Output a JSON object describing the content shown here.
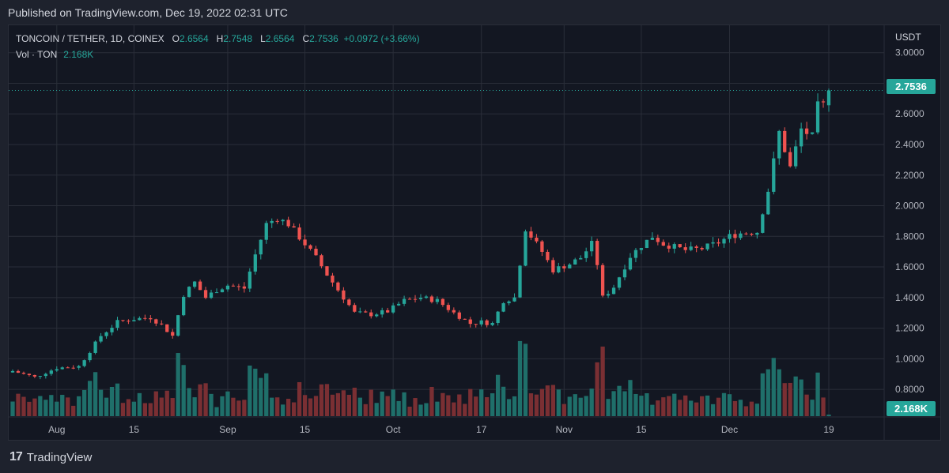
{
  "header": {
    "published": "Published on TradingView.com, Dec 19, 2022 02:31 UTC"
  },
  "legend": {
    "symbol": "TONCOIN / TETHER, 1D, COINEX",
    "o_label": "O",
    "o_value": "2.6564",
    "h_label": "H",
    "h_value": "2.7548",
    "l_label": "L",
    "l_value": "2.6564",
    "c_label": "C",
    "c_value": "2.7536",
    "change": "+0.0972 (+3.66%)",
    "vol_label": "Vol · TON",
    "vol_value": "2.168K"
  },
  "axis": {
    "unit": "USDT",
    "y_ticks": [
      "3.0000",
      "2.8000",
      "2.6000",
      "2.4000",
      "2.2000",
      "2.0000",
      "1.8000",
      "1.6000",
      "1.4000",
      "1.2000",
      "1.0000",
      "0.8000"
    ],
    "x_ticks": [
      "Aug",
      "15",
      "Sep",
      "15",
      "Oct",
      "17",
      "Nov",
      "15",
      "Dec",
      "19"
    ]
  },
  "price_tag": "2.7536",
  "volume_tag": "2.168K",
  "footer": {
    "brand": "TradingView",
    "logo": "17"
  },
  "colors": {
    "up": "#26a69a",
    "down": "#ef5350",
    "up_vol": "#1f6f6a",
    "down_vol": "#7a2f33",
    "grid": "#2a2e39",
    "bg": "#131722"
  },
  "chart_data": {
    "type": "candlestick",
    "title": "TONCOIN / TETHER, 1D, COINEX",
    "ylabel": "USDT",
    "ylim": [
      0.78,
      3.05
    ],
    "x_range": [
      "2022-07-24",
      "2022-12-19"
    ],
    "x_ticks": [
      {
        "label": "Aug",
        "date": "2022-08-01"
      },
      {
        "label": "15",
        "date": "2022-08-15"
      },
      {
        "label": "Sep",
        "date": "2022-09-01"
      },
      {
        "label": "15",
        "date": "2022-09-15"
      },
      {
        "label": "Oct",
        "date": "2022-10-01"
      },
      {
        "label": "17",
        "date": "2022-10-17"
      },
      {
        "label": "Nov",
        "date": "2022-11-01"
      },
      {
        "label": "15",
        "date": "2022-11-15"
      },
      {
        "label": "Dec",
        "date": "2022-12-01"
      },
      {
        "label": "19",
        "date": "2022-12-19"
      }
    ],
    "close_anchors": [
      [
        "2022-07-24",
        0.92
      ],
      [
        "2022-07-28",
        0.88
      ],
      [
        "2022-08-01",
        0.94
      ],
      [
        "2022-08-05",
        0.95
      ],
      [
        "2022-08-09",
        1.15
      ],
      [
        "2022-08-12",
        1.24
      ],
      [
        "2022-08-15",
        1.26
      ],
      [
        "2022-08-18",
        1.27
      ],
      [
        "2022-08-20",
        1.22
      ],
      [
        "2022-08-22",
        1.15
      ],
      [
        "2022-08-24",
        1.42
      ],
      [
        "2022-08-26",
        1.5
      ],
      [
        "2022-08-28",
        1.4
      ],
      [
        "2022-08-30",
        1.45
      ],
      [
        "2022-09-01",
        1.48
      ],
      [
        "2022-09-04",
        1.46
      ],
      [
        "2022-09-06",
        1.68
      ],
      [
        "2022-09-08",
        1.88
      ],
      [
        "2022-09-10",
        1.92
      ],
      [
        "2022-09-12",
        1.88
      ],
      [
        "2022-09-15",
        1.75
      ],
      [
        "2022-09-17",
        1.66
      ],
      [
        "2022-09-19",
        1.55
      ],
      [
        "2022-09-21",
        1.45
      ],
      [
        "2022-09-24",
        1.3
      ],
      [
        "2022-09-27",
        1.29
      ],
      [
        "2022-09-30",
        1.31
      ],
      [
        "2022-10-03",
        1.38
      ],
      [
        "2022-10-06",
        1.4
      ],
      [
        "2022-10-09",
        1.38
      ],
      [
        "2022-10-12",
        1.3
      ],
      [
        "2022-10-15",
        1.23
      ],
      [
        "2022-10-17",
        1.24
      ],
      [
        "2022-10-19",
        1.23
      ],
      [
        "2022-10-21",
        1.38
      ],
      [
        "2022-10-23",
        1.4
      ],
      [
        "2022-10-25",
        1.85
      ],
      [
        "2022-10-28",
        1.7
      ],
      [
        "2022-10-30",
        1.58
      ],
      [
        "2022-11-02",
        1.62
      ],
      [
        "2022-11-04",
        1.66
      ],
      [
        "2022-11-06",
        1.75
      ],
      [
        "2022-11-07",
        1.62
      ],
      [
        "2022-11-08",
        1.4
      ],
      [
        "2022-11-10",
        1.47
      ],
      [
        "2022-11-13",
        1.67
      ],
      [
        "2022-11-15",
        1.74
      ],
      [
        "2022-11-17",
        1.8
      ],
      [
        "2022-11-19",
        1.75
      ],
      [
        "2022-11-21",
        1.73
      ],
      [
        "2022-11-23",
        1.71
      ],
      [
        "2022-11-26",
        1.72
      ],
      [
        "2022-11-29",
        1.76
      ],
      [
        "2022-12-01",
        1.8
      ],
      [
        "2022-12-03",
        1.82
      ],
      [
        "2022-12-06",
        1.83
      ],
      [
        "2022-12-08",
        2.1
      ],
      [
        "2022-12-10",
        2.48
      ],
      [
        "2022-12-12",
        2.25
      ],
      [
        "2022-12-14",
        2.5
      ],
      [
        "2022-12-16",
        2.45
      ],
      [
        "2022-12-17",
        2.65
      ],
      [
        "2022-12-18",
        2.6564
      ],
      [
        "2022-12-19",
        2.7536
      ]
    ],
    "last_candle": {
      "date": "2022-12-19",
      "open": 2.6564,
      "high": 2.7548,
      "low": 2.6564,
      "close": 2.7536
    },
    "last_volume": "2.168K"
  }
}
